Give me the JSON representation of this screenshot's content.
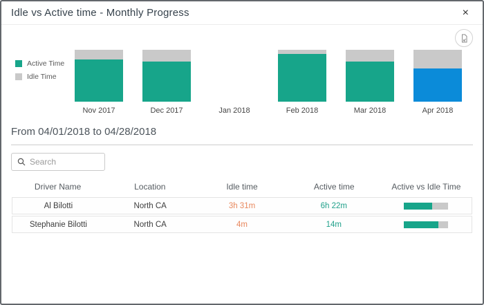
{
  "modal": {
    "title": "Idle vs Active time - Monthly Progress",
    "close_icon": "×"
  },
  "legend": {
    "items": [
      {
        "label": "Active Time",
        "color": "#17a58a"
      },
      {
        "label": "Idle Time",
        "color": "#c9c9c9"
      }
    ]
  },
  "chart_data": {
    "type": "bar",
    "stacked": true,
    "unit": "percent_of_month_total",
    "categories": [
      "Nov 2017",
      "Dec 2017",
      "Jan 2018",
      "Feb 2018",
      "Mar 2018",
      "Apr 2018"
    ],
    "series": [
      {
        "name": "Active Time",
        "color": "#17a58a",
        "values": [
          81,
          78,
          0,
          92,
          78,
          64
        ]
      },
      {
        "name": "Idle Time",
        "color": "#c9c9c9",
        "values": [
          19,
          22,
          0,
          8,
          22,
          36
        ]
      }
    ],
    "highlight": {
      "category": "Apr 2018",
      "series": "Active Time",
      "color": "#0b8bd9"
    },
    "title": "Idle vs Active time - Monthly Progress",
    "xlabel": "",
    "ylabel": "",
    "ylim": [
      0,
      100
    ],
    "grid": false,
    "legend_position": "left"
  },
  "filter": {
    "date_range": "From 04/01/2018 to 04/28/2018"
  },
  "search": {
    "placeholder": "Search",
    "value": ""
  },
  "table": {
    "columns": [
      "Driver Name",
      "Location",
      "Idle time",
      "Active time",
      "Active vs Idle Time"
    ],
    "rows": [
      {
        "driver_name": "Al Bilotti",
        "location": "North CA",
        "idle_time": "3h 31m",
        "active_time": "6h 22m",
        "active_pct": 64
      },
      {
        "driver_name": "Stephanie Bilotti",
        "location": "North CA",
        "idle_time": "4m",
        "active_time": "14m",
        "active_pct": 78
      }
    ]
  },
  "colors": {
    "active": "#17a58a",
    "idle": "#c9c9c9",
    "highlight_blue": "#0b8bd9",
    "idle_text": "#e8875c",
    "active_text": "#1fa08a"
  }
}
